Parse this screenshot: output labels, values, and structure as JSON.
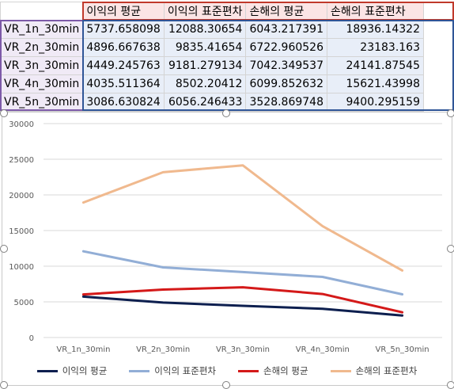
{
  "table": {
    "headers": [
      "이익의 평균",
      "이익의 표준편차",
      "손해의 평균",
      "손해의 표준편차"
    ],
    "rows": [
      {
        "label": "VR_1n_30min",
        "values": [
          "5737.658098",
          "12088.30654",
          "6043.217391",
          "18936.14322"
        ]
      },
      {
        "label": "VR_2n_30min",
        "values": [
          "4896.667638",
          "9835.41654",
          "6722.960526",
          "23183.163"
        ]
      },
      {
        "label": "VR_3n_30min",
        "values": [
          "4449.245763",
          "9181.279134",
          "7042.349537",
          "24141.87545"
        ]
      },
      {
        "label": "VR_4n_30min",
        "values": [
          "4035.511364",
          "8502.20412",
          "6099.852632",
          "15621.43998"
        ]
      },
      {
        "label": "VR_5n_30min",
        "values": [
          "3086.630824",
          "6056.246433",
          "3528.869748",
          "9400.295159"
        ]
      }
    ]
  },
  "colors": {
    "series": [
      "#0d1f4f",
      "#92aed6",
      "#d41919",
      "#f0b98e"
    ],
    "gridline": "#d9d9d9",
    "axis_text": "#595959"
  },
  "chart_data": {
    "type": "line",
    "categories": [
      "VR_1n_30min",
      "VR_2n_30min",
      "VR_3n_30min",
      "VR_4n_30min",
      "VR_5n_30min"
    ],
    "series": [
      {
        "name": "이익의 평균",
        "values": [
          5737.658098,
          4896.667638,
          4449.245763,
          4035.511364,
          3086.630824
        ]
      },
      {
        "name": "이익의 표준편차",
        "values": [
          12088.30654,
          9835.41654,
          9181.279134,
          8502.20412,
          6056.246433
        ]
      },
      {
        "name": "손해의 평균",
        "values": [
          6043.217391,
          6722.960526,
          7042.349537,
          6099.852632,
          3528.869748
        ]
      },
      {
        "name": "손해의 표준편차",
        "values": [
          18936.14322,
          23183.163,
          24141.87545,
          15621.43998,
          9400.295159
        ]
      }
    ],
    "yticks": [
      "0",
      "5000",
      "10000",
      "15000",
      "20000",
      "25000",
      "30000"
    ],
    "ylim": [
      0,
      30000
    ],
    "grid": true,
    "legend_position": "bottom"
  }
}
